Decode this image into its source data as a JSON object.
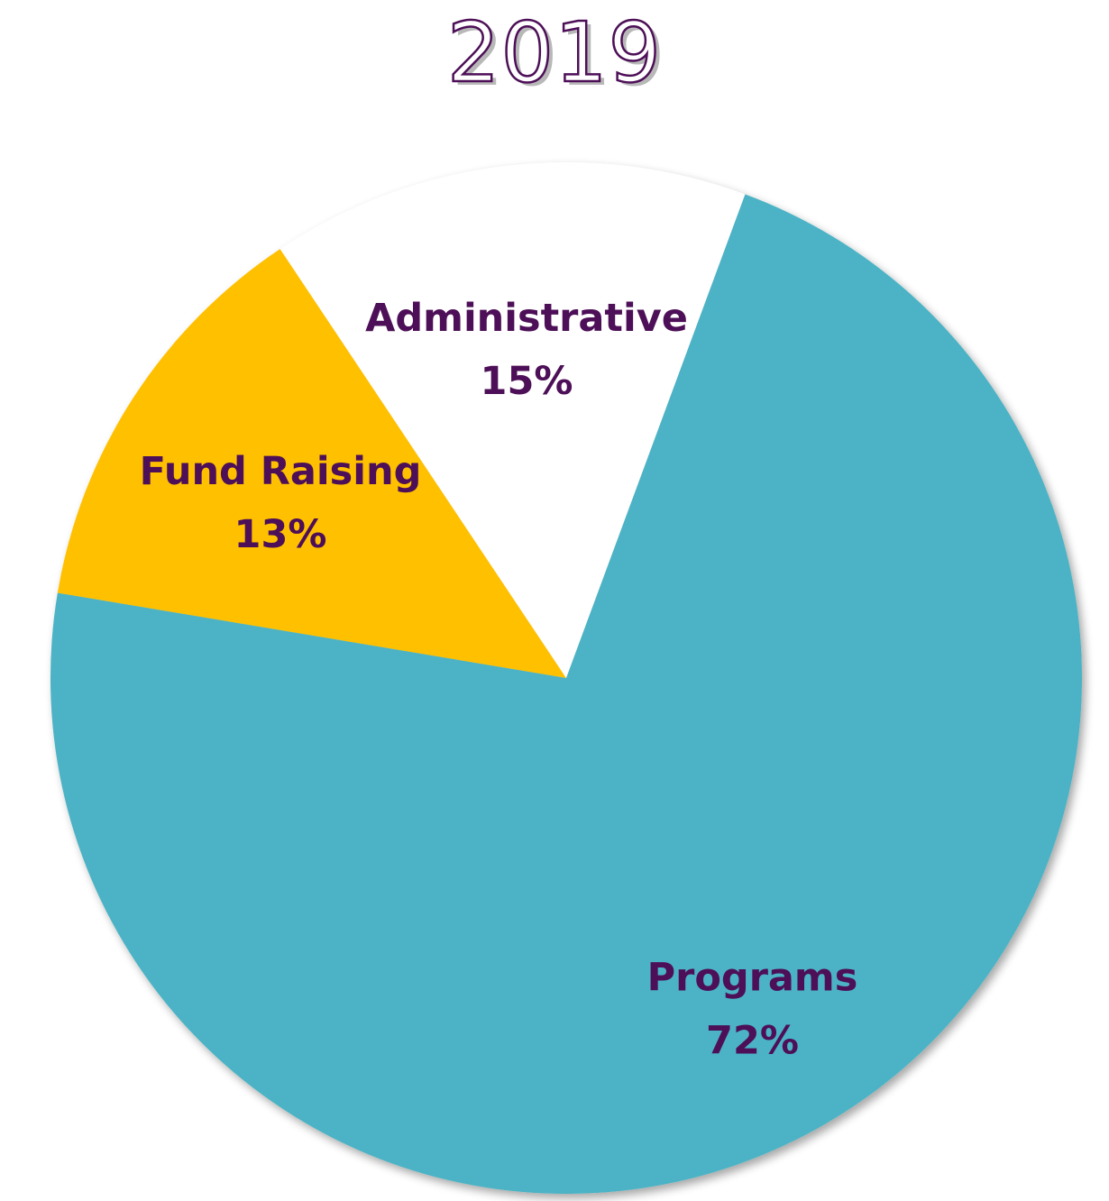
{
  "chart_data": {
    "type": "pie",
    "title": "2019",
    "slices": [
      {
        "label": "Fund Raising",
        "value": 13,
        "value_label": "13%",
        "color": "#FFC000"
      },
      {
        "label": "Administrative",
        "value": 15,
        "value_label": "15%",
        "color": "#FFFFFF"
      },
      {
        "label": "Programs",
        "value": 72,
        "value_label": "72%",
        "color": "#4BB3C5"
      }
    ],
    "label_color": "#4D0F57",
    "title_color": "#4D0F57",
    "legend": "none"
  }
}
